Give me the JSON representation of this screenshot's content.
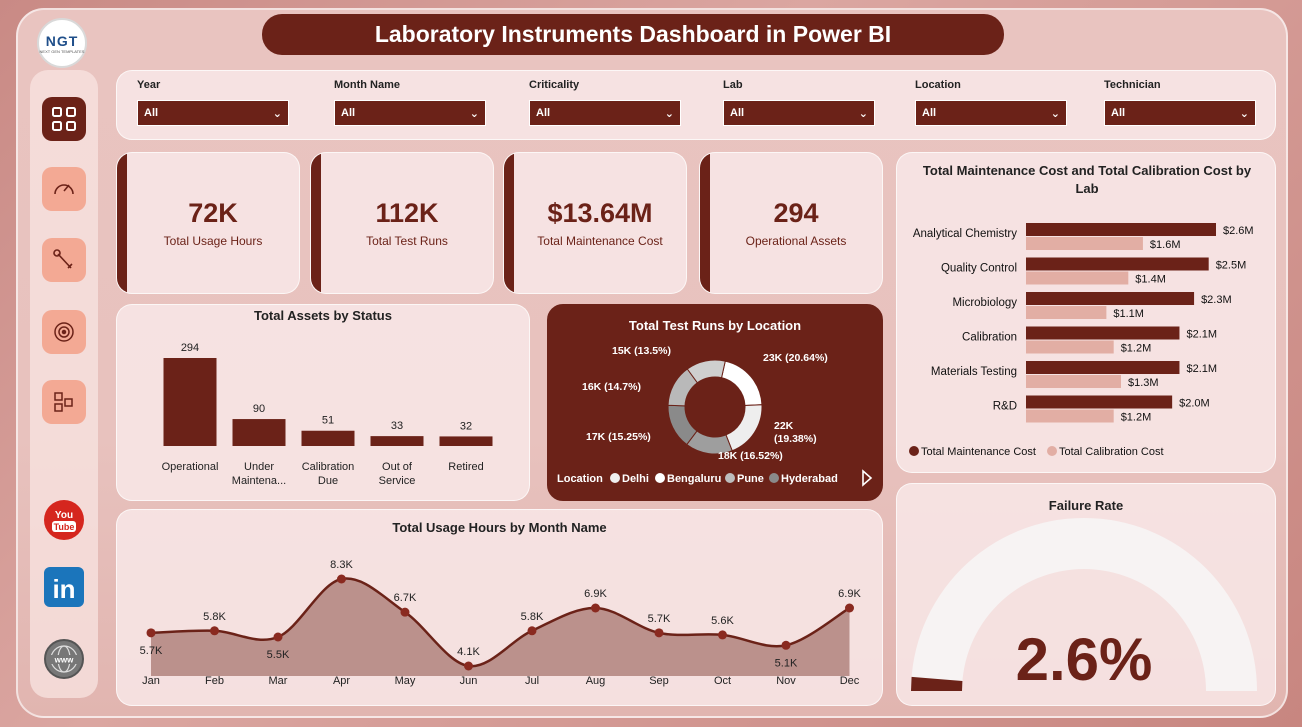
{
  "app": {
    "title": "Laboratory Instruments Dashboard in Power BI",
    "logo_text": "NGT",
    "logo_subtext": "NEXT GEN TEMPLATES"
  },
  "sidebar": {
    "items": [
      {
        "name": "overview",
        "icon": "grid-icon",
        "active": true
      },
      {
        "name": "gauge",
        "icon": "gauge-icon",
        "active": false
      },
      {
        "name": "tools",
        "icon": "wrench-icon",
        "active": false
      },
      {
        "name": "target",
        "icon": "target-icon",
        "active": false
      },
      {
        "name": "shapes",
        "icon": "shapes-icon",
        "active": false
      }
    ],
    "social": [
      {
        "name": "youtube",
        "icon": "youtube-icon",
        "label_top": "You",
        "label_bottom": "Tube"
      },
      {
        "name": "linkedin",
        "icon": "linkedin-icon",
        "label": "in"
      },
      {
        "name": "website",
        "icon": "globe-icon",
        "label": "www"
      }
    ]
  },
  "filters": [
    {
      "label": "Year",
      "value": "All"
    },
    {
      "label": "Month Name",
      "value": "All"
    },
    {
      "label": "Criticality",
      "value": "All"
    },
    {
      "label": "Lab",
      "value": "All"
    },
    {
      "label": "Location",
      "value": "All"
    },
    {
      "label": "Technician",
      "value": "All"
    }
  ],
  "kpis": [
    {
      "value": "72K",
      "label": "Total Usage Hours"
    },
    {
      "value": "112K",
      "label": "Total Test Runs"
    },
    {
      "value": "$13.64M",
      "label": "Total Maintenance Cost"
    },
    {
      "value": "294",
      "label": "Operational Assets"
    }
  ],
  "colors": {
    "primary": "#6b2218",
    "secondary": "#e2aea4",
    "nav": "#f3a994"
  },
  "chart_data": [
    {
      "id": "assets_by_status",
      "type": "bar",
      "title": "Total Assets by Status",
      "categories": [
        "Operational",
        "Under Maintena...",
        "Calibration Due",
        "Out of Service",
        "Retired"
      ],
      "category_lines": [
        [
          "Operational"
        ],
        [
          "Under",
          "Maintena..."
        ],
        [
          "Calibration",
          "Due"
        ],
        [
          "Out of",
          "Service"
        ],
        [
          "Retired"
        ]
      ],
      "values": [
        294,
        90,
        51,
        33,
        32
      ],
      "data_labels": [
        "294",
        "90",
        "51",
        "33",
        "32"
      ]
    },
    {
      "id": "test_runs_by_location",
      "type": "pie",
      "title": "Total Test Runs by Location",
      "legend_title": "Location",
      "legend": [
        "Delhi",
        "Bengaluru",
        "Pune",
        "Hyderabad"
      ],
      "slices": [
        {
          "value": 23,
          "label": "23K (20.64%)",
          "color": "#ffffff"
        },
        {
          "value": 22,
          "label": "22K (19.38%)",
          "color": "#eeeeee"
        },
        {
          "value": 18,
          "label": "18K (16.52%)",
          "color": "#9e9e9e"
        },
        {
          "value": 17,
          "label": "17K (15.25%)",
          "color": "#8a8a8a"
        },
        {
          "value": 16,
          "label": "16K (14.7%)",
          "color": "#b9b9b9"
        },
        {
          "value": 15,
          "label": "15K (13.5%)",
          "color": "#cfcfcf"
        }
      ],
      "legend_colors": [
        "#f0f0f0",
        "#ffffff",
        "#bdbdbd",
        "#8a8a8a"
      ]
    },
    {
      "id": "cost_by_lab",
      "type": "bar",
      "orientation": "horizontal",
      "title": "Total Maintenance Cost and Total Calibration Cost by Lab",
      "title_lines": [
        "Total Maintenance Cost and Total Calibration Cost by",
        "Lab"
      ],
      "categories": [
        "Analytical Chemistry",
        "Quality Control",
        "Microbiology",
        "Calibration",
        "Materials Testing",
        "R&D"
      ],
      "series": [
        {
          "name": "Total Maintenance Cost",
          "values": [
            2.6,
            2.5,
            2.3,
            2.1,
            2.1,
            2.0
          ],
          "labels": [
            "$2.6M",
            "$2.5M",
            "$2.3M",
            "$2.1M",
            "$2.1M",
            "$2.0M"
          ],
          "color": "#6b2218"
        },
        {
          "name": "Total Calibration Cost",
          "values": [
            1.6,
            1.4,
            1.1,
            1.2,
            1.3,
            1.2
          ],
          "labels": [
            "$1.6M",
            "$1.4M",
            "$1.1M",
            "$1.2M",
            "$1.3M",
            "$1.2M"
          ],
          "color": "#e2aea4"
        }
      ]
    },
    {
      "id": "usage_by_month",
      "type": "area",
      "title": "Total Usage Hours by Month Name",
      "categories": [
        "Jan",
        "Feb",
        "Mar",
        "Apr",
        "May",
        "Jun",
        "Jul",
        "Aug",
        "Sep",
        "Oct",
        "Nov",
        "Dec"
      ],
      "values": [
        5.7,
        5.8,
        5.5,
        8.3,
        6.7,
        4.1,
        5.8,
        6.9,
        5.7,
        5.6,
        5.1,
        6.9
      ],
      "data_labels": [
        "5.7K",
        "5.8K",
        "5.5K",
        "8.3K",
        "6.7K",
        "4.1K",
        "5.8K",
        "6.9K",
        "5.7K",
        "5.6K",
        "5.1K",
        "6.9K"
      ],
      "label_below": [
        true,
        false,
        true,
        false,
        false,
        false,
        false,
        false,
        false,
        false,
        true,
        false
      ]
    },
    {
      "id": "failure_rate",
      "type": "gauge",
      "title": "Failure Rate",
      "value": 2.6,
      "max": 100,
      "display": "2.6%"
    }
  ]
}
